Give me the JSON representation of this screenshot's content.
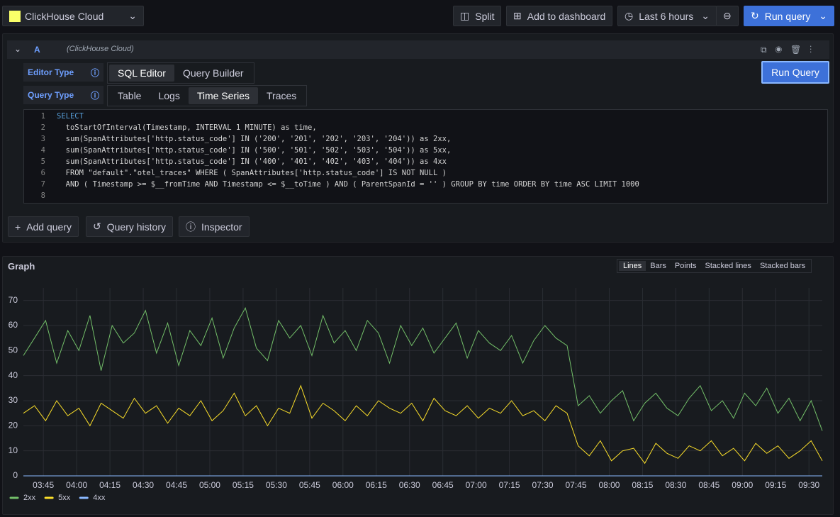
{
  "toolbar": {
    "datasource": "ClickHouse Cloud",
    "split": "Split",
    "add_to_dashboard": "Add to dashboard",
    "time_range": "Last 6 hours",
    "run_query": "Run query"
  },
  "query": {
    "letter": "A",
    "datasource": "(ClickHouse Cloud)",
    "editor_type_label": "Editor Type",
    "editor_types": [
      "SQL Editor",
      "Query Builder"
    ],
    "query_type_label": "Query Type",
    "query_types": [
      "Table",
      "Logs",
      "Time Series",
      "Traces"
    ],
    "run_button": "Run Query",
    "line_numbers": [
      1,
      2,
      3,
      4,
      5,
      6,
      7,
      8
    ],
    "code_lines": [
      "SELECT",
      "  toStartOfInterval(Timestamp, INTERVAL 1 MINUTE) as time,",
      "  sum(SpanAttributes['http.status_code'] IN ('200', '201', '202', '203', '204')) as 2xx,",
      "  sum(SpanAttributes['http.status_code'] IN ('500', '501', '502', '503', '504')) as 5xx,",
      "  sum(SpanAttributes['http.status_code'] IN ('400', '401', '402', '403', '404')) as 4xx",
      "  FROM \"default\".\"otel_traces\" WHERE ( SpanAttributes['http.status_code'] IS NOT NULL )",
      "  AND ( Timestamp >= $__fromTime AND Timestamp <= $__toTime ) AND ( ParentSpanId = '' ) GROUP BY time ORDER BY time ASC LIMIT 1000"
    ]
  },
  "actions": {
    "add_query": "Add query",
    "query_history": "Query history",
    "inspector": "Inspector"
  },
  "chart_data": {
    "type": "line",
    "title": "Graph",
    "view_options": [
      "Lines",
      "Bars",
      "Points",
      "Stacked lines",
      "Stacked bars"
    ],
    "x": [
      "03:36",
      "03:41",
      "03:46",
      "03:51",
      "03:56",
      "04:01",
      "04:06",
      "04:11",
      "04:16",
      "04:21",
      "04:26",
      "04:31",
      "04:36",
      "04:41",
      "04:46",
      "04:51",
      "04:56",
      "05:01",
      "05:06",
      "05:11",
      "05:16",
      "05:21",
      "05:26",
      "05:31",
      "05:36",
      "05:41",
      "05:46",
      "05:51",
      "05:56",
      "06:01",
      "06:06",
      "06:11",
      "06:16",
      "06:21",
      "06:26",
      "06:31",
      "06:36",
      "06:41",
      "06:46",
      "06:51",
      "06:56",
      "07:01",
      "07:06",
      "07:11",
      "07:16",
      "07:21",
      "07:26",
      "07:31",
      "07:36",
      "07:41",
      "07:46",
      "07:51",
      "07:56",
      "08:01",
      "08:06",
      "08:11",
      "08:16",
      "08:21",
      "08:26",
      "08:31",
      "08:36",
      "08:41",
      "08:46",
      "08:51",
      "08:56",
      "09:01",
      "09:06",
      "09:11",
      "09:16",
      "09:21",
      "09:26",
      "09:31",
      "09:36"
    ],
    "xlim": [
      "03:36",
      "09:36"
    ],
    "xticks": [
      "03:45",
      "04:00",
      "04:15",
      "04:30",
      "04:45",
      "05:00",
      "05:15",
      "05:30",
      "05:45",
      "06:00",
      "06:15",
      "06:30",
      "06:45",
      "07:00",
      "07:15",
      "07:30",
      "07:45",
      "08:00",
      "08:15",
      "08:30",
      "08:45",
      "09:00",
      "09:15",
      "09:30"
    ],
    "ylim": [
      0,
      75
    ],
    "yticks": [
      0,
      10,
      20,
      30,
      40,
      50,
      60,
      70
    ],
    "grid": true,
    "series": [
      {
        "name": "2xx",
        "color": "#73bf69",
        "values": [
          48,
          55,
          62,
          45,
          58,
          50,
          64,
          42,
          60,
          53,
          57,
          66,
          49,
          61,
          44,
          58,
          52,
          63,
          47,
          59,
          67,
          51,
          46,
          62,
          55,
          60,
          48,
          64,
          53,
          58,
          50,
          62,
          57,
          45,
          60,
          52,
          59,
          49,
          55,
          61,
          47,
          58,
          53,
          50,
          56,
          45,
          54,
          60,
          55,
          52,
          28,
          32,
          25,
          30,
          34,
          22,
          29,
          33,
          27,
          24,
          31,
          36,
          26,
          30,
          23,
          33,
          28,
          35,
          25,
          31,
          22,
          30,
          18
        ]
      },
      {
        "name": "5xx",
        "color": "#fade2a",
        "values": [
          25,
          28,
          22,
          30,
          24,
          27,
          20,
          29,
          26,
          23,
          31,
          25,
          28,
          21,
          27,
          24,
          30,
          22,
          26,
          33,
          24,
          28,
          20,
          27,
          25,
          36,
          23,
          29,
          26,
          22,
          28,
          24,
          30,
          27,
          25,
          29,
          22,
          31,
          26,
          24,
          28,
          23,
          27,
          25,
          30,
          24,
          26,
          22,
          28,
          25,
          12,
          8,
          14,
          6,
          10,
          11,
          5,
          13,
          9,
          7,
          12,
          10,
          14,
          8,
          11,
          6,
          13,
          9,
          12,
          7,
          10,
          14,
          6
        ]
      },
      {
        "name": "4xx",
        "color": "#8ab8ff",
        "values": [
          0,
          0,
          0,
          0,
          0,
          0,
          0,
          0,
          0,
          0,
          0,
          0,
          0,
          0,
          0,
          0,
          0,
          0,
          0,
          0,
          0,
          0,
          0,
          0,
          0,
          0,
          0,
          0,
          0,
          0,
          0,
          0,
          0,
          0,
          0,
          0,
          0,
          0,
          0,
          0,
          0,
          0,
          0,
          0,
          0,
          0,
          0,
          0,
          0,
          0,
          0,
          0,
          0,
          0,
          0,
          0,
          0,
          0,
          0,
          0,
          0,
          0,
          0,
          0,
          0,
          0,
          0,
          0,
          0,
          0,
          0,
          0,
          0
        ]
      }
    ]
  }
}
